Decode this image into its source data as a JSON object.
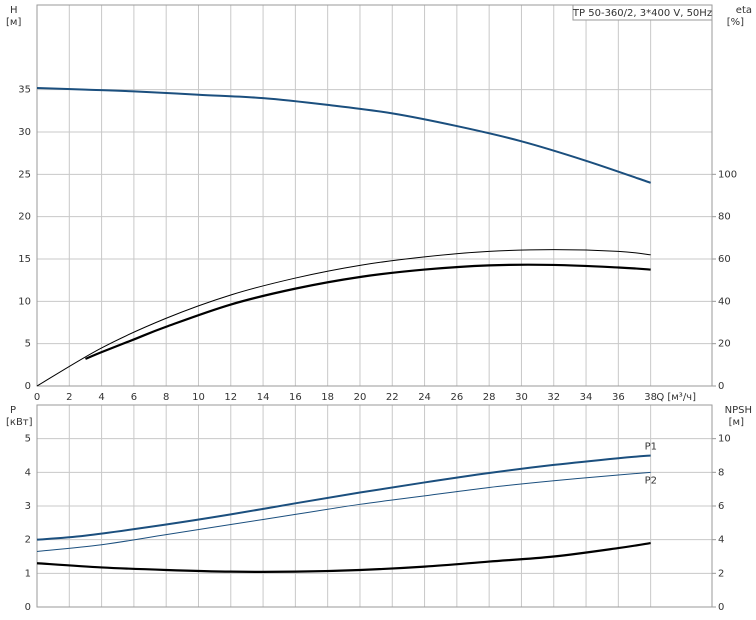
{
  "chart_data": [
    {
      "type": "line",
      "title": "TP 50-360/2, 3*400 V, 50Hz",
      "ylabel": "H",
      "yunit": "[м]",
      "y2label": "eta",
      "y2unit": "[%]",
      "xlabel": "Q [м³/ч]",
      "xlim": [
        0,
        41.8
      ],
      "ylim": [
        0,
        45
      ],
      "y2lim": [
        0,
        180
      ],
      "xticks": [
        0,
        2,
        4,
        6,
        8,
        10,
        12,
        14,
        16,
        18,
        20,
        22,
        24,
        26,
        28,
        30,
        32,
        34,
        36,
        38
      ],
      "yticks": [
        0,
        5,
        10,
        15,
        20,
        25,
        30,
        35
      ],
      "y2ticks": [
        0,
        20,
        40,
        60,
        80,
        100
      ],
      "show_xtick_labels": true,
      "grid": true,
      "series": [
        {
          "color": "#1b4f7e",
          "width": 2,
          "x": [
            0,
            3,
            6,
            10,
            14,
            18,
            22,
            26,
            30,
            34,
            38
          ],
          "values": [
            35.2,
            35.0,
            34.8,
            34.4,
            34.0,
            33.2,
            32.2,
            30.7,
            28.9,
            26.6,
            24.0
          ]
        },
        {
          "color": "#000000",
          "width": 1,
          "axis": "y2",
          "x": [
            0,
            4,
            8,
            12,
            16,
            20,
            24,
            28,
            32,
            36,
            38
          ],
          "values": [
            0,
            18,
            32,
            43,
            51,
            57,
            61,
            63.6,
            64.4,
            63.6,
            62
          ]
        },
        {
          "color": "#000000",
          "width": 2.2,
          "axis": "y2",
          "x": [
            3,
            4,
            6,
            8,
            12,
            16,
            20,
            24,
            28,
            32,
            36,
            38
          ],
          "values": [
            12.8,
            16,
            22,
            28,
            38.5,
            46,
            51.5,
            55,
            57,
            57.2,
            56,
            55
          ]
        }
      ]
    },
    {
      "type": "line",
      "ylabel": "P",
      "yunit": "[кВт]",
      "y2label": "NPSH",
      "y2unit": "[м]",
      "xlim": [
        0,
        41.8
      ],
      "ylim": [
        0,
        6
      ],
      "y2lim": [
        0,
        12
      ],
      "xticks": [
        0,
        2,
        4,
        6,
        8,
        10,
        12,
        14,
        16,
        18,
        20,
        22,
        24,
        26,
        28,
        30,
        32,
        34,
        36,
        38
      ],
      "yticks": [
        0,
        1,
        2,
        3,
        4,
        5
      ],
      "y2ticks": [
        0,
        2,
        4,
        6,
        8,
        10
      ],
      "show_xtick_labels": false,
      "grid": true,
      "series": [
        {
          "name": "P1",
          "color": "#1b4f7e",
          "width": 2,
          "x": [
            0,
            3,
            8,
            12,
            16,
            20,
            24,
            28,
            32,
            36,
            38
          ],
          "values": [
            2.0,
            2.12,
            2.45,
            2.75,
            3.08,
            3.4,
            3.7,
            3.98,
            4.22,
            4.42,
            4.5
          ]
        },
        {
          "name": "P2",
          "color": "#1b4f7e",
          "width": 1,
          "x": [
            0,
            4,
            8,
            12,
            16,
            20,
            24,
            28,
            32,
            36,
            38
          ],
          "values": [
            1.65,
            1.85,
            2.15,
            2.45,
            2.75,
            3.05,
            3.3,
            3.55,
            3.75,
            3.92,
            4.0
          ]
        },
        {
          "color": "#000000",
          "width": 2.2,
          "axis": "y2",
          "x": [
            0,
            4,
            8,
            12,
            16,
            20,
            24,
            28,
            32,
            36,
            38
          ],
          "values": [
            2.6,
            2.35,
            2.2,
            2.1,
            2.1,
            2.2,
            2.4,
            2.7,
            3.0,
            3.5,
            3.8
          ]
        }
      ]
    }
  ]
}
